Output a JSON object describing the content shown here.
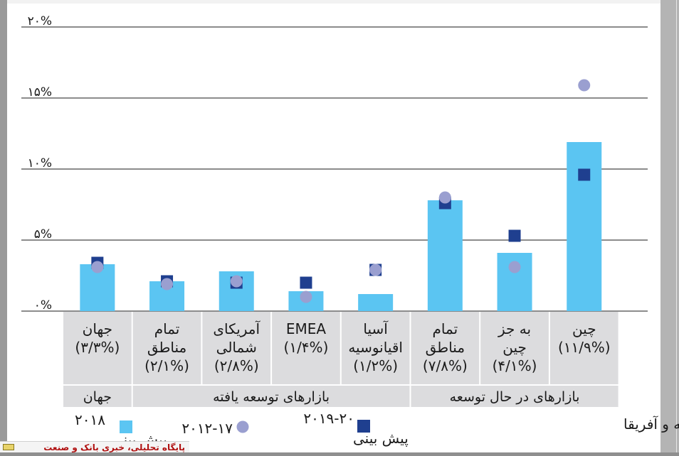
{
  "chart_data": {
    "type": "bar",
    "ylim": [
      0,
      20
    ],
    "yticks": [
      "۰%",
      "۵%",
      "۱۰%",
      "۱۵%",
      "۲۰%"
    ],
    "ytick_values": [
      0,
      5,
      10,
      15,
      20
    ],
    "grid": true,
    "categories": [
      {
        "lines": [
          "جهان",
          "(۳/۳%)"
        ]
      },
      {
        "lines": [
          "تمام",
          "مناطق",
          "(۲/۱%)"
        ]
      },
      {
        "lines": [
          "آمریکای",
          "شمالی",
          "(۲/۸%)"
        ]
      },
      {
        "lines": [
          "EMEA",
          "(۱/۴%)"
        ]
      },
      {
        "lines": [
          "آسیا",
          "اقیانوسیه",
          "(۱/۲%)"
        ]
      },
      {
        "lines": [
          "تمام",
          "مناطق",
          "(۷/۸%)"
        ]
      },
      {
        "lines": [
          "به جز",
          "چین",
          "(۴/۱%)"
        ]
      },
      {
        "lines": [
          "چین",
          "(۱۱/۹%)"
        ]
      }
    ],
    "groups": [
      {
        "label": "جهان",
        "from": 0,
        "to": 0
      },
      {
        "label": "بازارهای توسعه یافته",
        "from": 1,
        "to": 4
      },
      {
        "label": "بازارهای در حال توسعه",
        "from": 5,
        "to": 7
      }
    ],
    "series": [
      {
        "name": "۲۰۱۸ پیش بینی",
        "kind": "bar",
        "color": "#5bc5f2",
        "values": [
          3.3,
          2.1,
          2.8,
          1.4,
          1.2,
          7.8,
          4.1,
          11.9
        ]
      },
      {
        "name": "۲۰-۲۰۱۹ پیش بینی",
        "kind": "square",
        "color": "#1f3f8f",
        "values": [
          3.4,
          2.1,
          2.0,
          2.0,
          2.9,
          7.6,
          5.3,
          9.6
        ]
      },
      {
        "name": "۲۰۱۲-۱۷",
        "kind": "circle",
        "color": "#9a9fd0",
        "values": [
          3.1,
          1.9,
          2.1,
          1.0,
          2.9,
          8.0,
          3.1,
          15.9
        ]
      }
    ],
    "legend_note": "EMEA: اروپا، خاورمیانه و آفریقا"
  },
  "legend": {
    "bar_label_line1": "۲۰۱۸",
    "bar_label_line2": "پیش بینی",
    "circle_label": "۲۰۱۲-۱۷",
    "square_label_line1": "۲۰۱۹-۲۰",
    "square_label_line2": "پیش بینی",
    "note": "EMEA: اروپا، خاورمیانه و آفریقا"
  },
  "watermark": {
    "text": "پایگاه تحلیلی، خبری بانک و صنعت"
  },
  "colors": {
    "bar": "#5bc5f2",
    "square": "#1f3f8f",
    "circle": "#9a9fd0",
    "panel": "#dcdcde"
  }
}
